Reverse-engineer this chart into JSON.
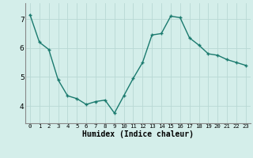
{
  "x": [
    0,
    1,
    2,
    3,
    4,
    5,
    6,
    7,
    8,
    9,
    10,
    11,
    12,
    13,
    14,
    15,
    16,
    17,
    18,
    19,
    20,
    21,
    22,
    23
  ],
  "y": [
    7.15,
    6.2,
    5.95,
    4.9,
    4.35,
    4.25,
    4.05,
    4.15,
    4.2,
    3.75,
    4.35,
    4.95,
    5.5,
    6.45,
    6.5,
    7.1,
    7.05,
    6.35,
    6.1,
    5.8,
    5.75,
    5.6,
    5.5,
    5.4
  ],
  "line_color": "#1a7a6e",
  "bg_color": "#d4eeea",
  "grid_color": "#b8d8d4",
  "xlabel": "Humidex (Indice chaleur)",
  "xlabel_fontsize": 7.0,
  "ylim": [
    3.4,
    7.55
  ],
  "yticks": [
    4,
    5,
    6,
    7
  ],
  "xtick_labels": [
    "0",
    "1",
    "2",
    "3",
    "4",
    "5",
    "6",
    "7",
    "8",
    "9",
    "10",
    "11",
    "12",
    "13",
    "14",
    "15",
    "16",
    "17",
    "18",
    "19",
    "20",
    "21",
    "22",
    "23"
  ],
  "marker_size": 2.5,
  "line_width": 1.0,
  "xtick_fontsize": 5.2,
  "ytick_fontsize": 6.5
}
